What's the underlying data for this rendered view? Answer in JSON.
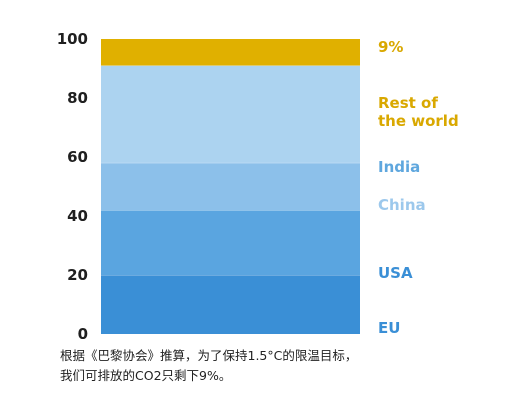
{
  "chart_data": {
    "type": "bar",
    "stacked": true,
    "title": "",
    "xlabel": "",
    "ylabel": "",
    "ylim": [
      0,
      100
    ],
    "yticks": [
      0,
      20,
      40,
      60,
      80,
      100
    ],
    "categories": [
      ""
    ],
    "series": [
      {
        "name": "EU",
        "label_lines": [
          "EU"
        ],
        "values": [
          20
        ],
        "color": "#3a8fd6",
        "label_color": "#3a8fd6"
      },
      {
        "name": "USA",
        "label_lines": [
          "USA"
        ],
        "values": [
          22
        ],
        "color": "#5aa5e0",
        "label_color": "#3a8fd6"
      },
      {
        "name": "China",
        "label_lines": [
          "China"
        ],
        "values": [
          16
        ],
        "color": "#8cc0ea",
        "label_color": "#9cc8ec"
      },
      {
        "name": "India",
        "label_lines": [
          "India"
        ],
        "values": [
          33
        ],
        "color": "#acd3f0",
        "label_color": "#5fa7de"
      },
      {
        "name": "Rest of the world",
        "label_lines": [
          "Rest of",
          "the world"
        ],
        "values": [
          9
        ],
        "color": "#e0b000",
        "label_color": "#d9a800"
      }
    ],
    "grid": false,
    "legend": "right"
  },
  "caption": {
    "line1": "根据《巴黎协会》推算，为了保持1.5°C的限温目标，",
    "line2": "我们可排放的CO2只剩下9%。"
  }
}
